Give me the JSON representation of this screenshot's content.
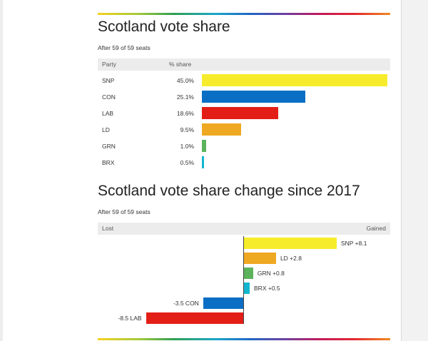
{
  "page": {
    "top_text": "...",
    "charts": [
      {
        "title": "Scotland vote share",
        "subtitle": "After 59 of 59 seats",
        "col_party": "Party",
        "col_share": "% share"
      },
      {
        "title": "Scotland vote share change since 2017",
        "subtitle": "After 59 of 59 seats",
        "lost_label": "Lost",
        "gained_label": "Gained"
      }
    ]
  },
  "colors": {
    "SNP": "#f7ec2b",
    "CON": "#0a6fc4",
    "LAB": "#e31e17",
    "LD": "#efa822",
    "GRN": "#5cb35c",
    "BRX": "#12b6cf"
  },
  "chart_data": [
    {
      "type": "bar",
      "title": "Scotland vote share",
      "orientation": "horizontal",
      "categories": [
        "SNP",
        "CON",
        "LAB",
        "LD",
        "GRN",
        "BRX"
      ],
      "values": [
        45.0,
        25.1,
        18.6,
        9.5,
        1.0,
        0.5
      ],
      "value_labels": [
        "45.0%",
        "25.1%",
        "18.6%",
        "9.5%",
        "1.0%",
        "0.5%"
      ],
      "unit": "% share",
      "xlim": [
        0,
        45
      ]
    },
    {
      "type": "bar",
      "title": "Scotland vote share change since 2017",
      "orientation": "horizontal",
      "categories": [
        "SNP",
        "LD",
        "GRN",
        "BRX",
        "CON",
        "LAB"
      ],
      "values": [
        8.1,
        2.8,
        0.8,
        0.5,
        -3.5,
        -8.5
      ],
      "value_labels": [
        "+8.1",
        "+2.8",
        "+0.8",
        "+0.5",
        "-3.5",
        "-8.5"
      ],
      "xlim": [
        -8.5,
        8.1
      ]
    }
  ]
}
